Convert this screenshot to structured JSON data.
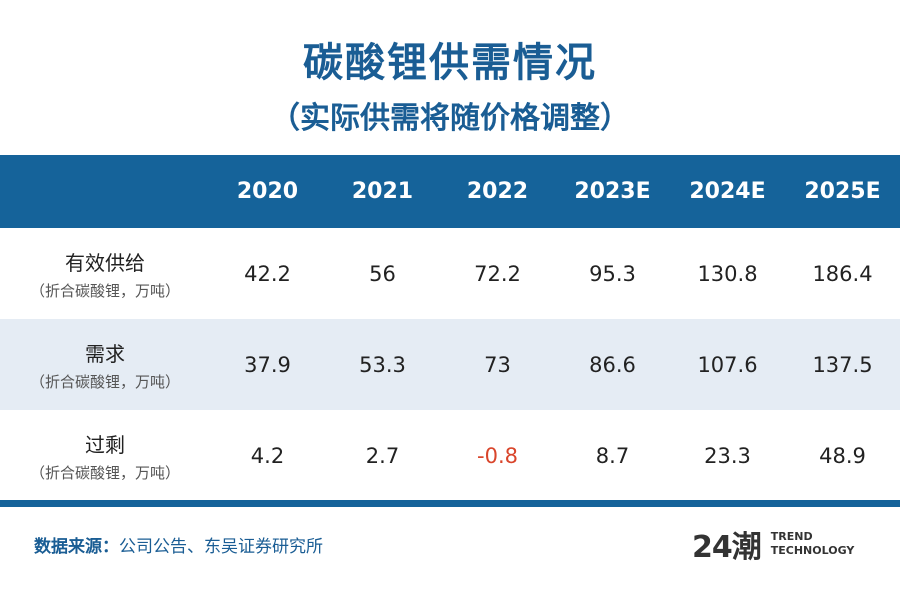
{
  "title": "碳酸锂供需情况",
  "subtitle": "（实际供需将随价格调整）",
  "table": {
    "columns": [
      "2020",
      "2021",
      "2022",
      "2023E",
      "2024E",
      "2025E"
    ],
    "rows": [
      {
        "label": "有效供给",
        "unit": "（折合碳酸锂，万吨）",
        "values": [
          "42.2",
          "56",
          "72.2",
          "95.3",
          "130.8",
          "186.4"
        ]
      },
      {
        "label": "需求",
        "unit": "（折合碳酸锂，万吨）",
        "values": [
          "37.9",
          "53.3",
          "73",
          "86.6",
          "107.6",
          "137.5"
        ]
      },
      {
        "label": "过剩",
        "unit": "（折合碳酸锂，万吨）",
        "values": [
          "4.2",
          "2.7",
          "-0.8",
          "8.7",
          "23.3",
          "48.9"
        ]
      }
    ]
  },
  "footer": {
    "source_label": "数据来源：",
    "source_text": "公司公告、东吴证券研究所"
  },
  "logo": {
    "mark": "24潮",
    "line1": "TREND",
    "line2": "TECHNOLOGY"
  },
  "colors": {
    "header": "#15639a",
    "alt_row": "#e5ecf4",
    "negative": "#d9452b"
  }
}
